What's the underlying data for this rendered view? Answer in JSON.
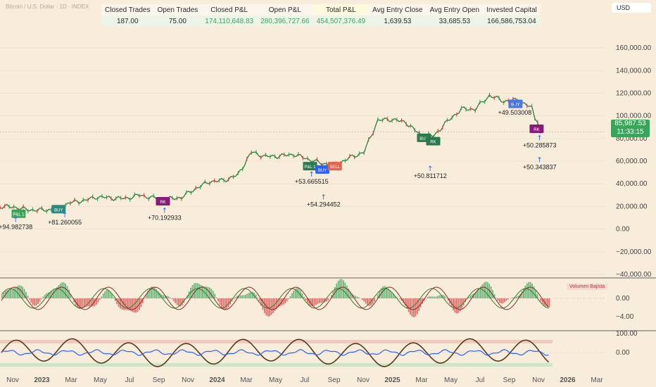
{
  "header": {
    "symbol_title": "Bitcoin / U.S. Dollar · 1D · INDEX",
    "currency_select": "USD"
  },
  "stats_table": {
    "headers": [
      "Closed Trades",
      "Open Trades",
      "Closed P&L",
      "Open P&L",
      "Total P&L",
      "Avg Entry Close",
      "Avg Entry Open",
      "Invested Capital"
    ],
    "values": [
      "187.00",
      "75.00",
      "174,110,648.83",
      "280,396,727.66",
      "454,507,376.49",
      "1,639.53",
      "33,685.53",
      "166,586,753.04"
    ]
  },
  "price_badge": {
    "price": "85,987.53",
    "countdown": "11:33:15"
  },
  "indicator_label": "Volumen Bajista",
  "colors": {
    "background": "#f8ecdb",
    "up": "#3aa55a",
    "down": "#d64545",
    "accent_blue": "#2962ff",
    "dark_line": "#5a3a1a"
  },
  "chart_data": [
    {
      "type": "line",
      "title": "Bitcoin / U.S. Dollar · 1D · INDEX",
      "x": [
        "2022-09-01",
        "2022-10-01",
        "2022-11-01",
        "2022-12-01",
        "2023-01-01",
        "2023-02-01",
        "2023-03-01",
        "2023-04-01",
        "2023-05-01",
        "2023-06-01",
        "2023-07-01",
        "2023-08-01",
        "2023-09-01",
        "2023-10-01",
        "2023-11-01",
        "2023-12-01",
        "2024-01-01",
        "2024-02-01",
        "2024-03-01",
        "2024-04-01",
        "2024-05-01",
        "2024-06-01",
        "2024-07-01",
        "2024-08-01",
        "2024-09-01",
        "2024-10-01",
        "2024-11-01",
        "2024-12-01",
        "2025-01-01",
        "2025-02-01",
        "2025-03-01",
        "2025-04-01",
        "2025-05-01",
        "2025-06-01",
        "2025-07-01",
        "2025-08-01",
        "2025-09-01",
        "2025-10-01",
        "2025-11-01",
        "2025-11-20"
      ],
      "series": [
        {
          "values": [
            20000,
            19500,
            17000,
            16800,
            17500,
            23500,
            25000,
            28500,
            27500,
            27000,
            30000,
            27500,
            26500,
            28000,
            36000,
            42000,
            43000,
            48000,
            68000,
            64000,
            64500,
            66000,
            62000,
            58000,
            57000,
            63000,
            68000,
            96000,
            97000,
            94000,
            84000,
            82000,
            95000,
            106000,
            106000,
            118000,
            113000,
            114000,
            107000,
            85987.53
          ]
        }
      ],
      "y_ticks": [
        "−40,000.00",
        "−20,000.00",
        "0.00",
        "20,000.00",
        "40,000.00",
        "60,000.00",
        "80,000.00",
        "100,000.00",
        "120,000.00",
        "140,000.00",
        "160,000.00"
      ],
      "x_ticks": [
        "Nov",
        "2023",
        "Mar",
        "May",
        "Jul",
        "Sep",
        "Nov",
        "2024",
        "Mar",
        "May",
        "Jul",
        "Sep",
        "Nov",
        "2025",
        "Mar",
        "May",
        "Jul",
        "Sep",
        "Nov",
        "2026",
        "Mar"
      ],
      "ylim": [
        -40000,
        170000
      ],
      "annotations": [
        "+94.982738",
        "+81.260055",
        "+70.192933",
        "+53.665515",
        "+54.294452",
        "+50.811712",
        "+49.503008",
        "+50.285873",
        "+50.343837"
      ],
      "trade_tags": [
        "P&L 1",
        "BUY",
        "RK",
        "SELL"
      ]
    },
    {
      "type": "bar",
      "title": "",
      "y_ticks": [
        "0.00",
        "−4.00"
      ],
      "legend": "Volumen Bajista"
    },
    {
      "type": "line",
      "title": "",
      "y_ticks": [
        "100.00",
        "0.00"
      ]
    }
  ]
}
